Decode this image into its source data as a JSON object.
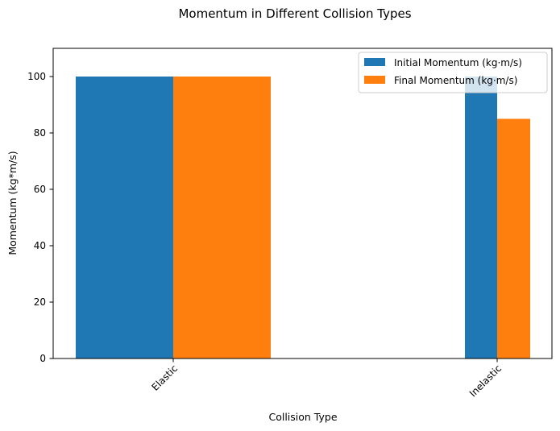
{
  "chart_data": {
    "type": "bar",
    "title": "Momentum in Different Collision Types",
    "xlabel": "Collision Type",
    "ylabel": "Momentum (kg*m/s)",
    "categories": [
      "Elastic",
      "Inelastic"
    ],
    "series": [
      {
        "name": "Initial Momentum (kg·m/s)",
        "values": [
          100,
          100
        ],
        "color": "#1f77b4"
      },
      {
        "name": "Final Momentum (kg·m/s)",
        "values": [
          100,
          85
        ],
        "color": "#ff7f0e"
      }
    ],
    "ylim": [
      0,
      110
    ],
    "yticks": [
      0,
      20,
      40,
      60,
      80,
      100
    ],
    "x_tick_rotation": "45 degrees",
    "grid": false,
    "legend_position": "top-right"
  }
}
